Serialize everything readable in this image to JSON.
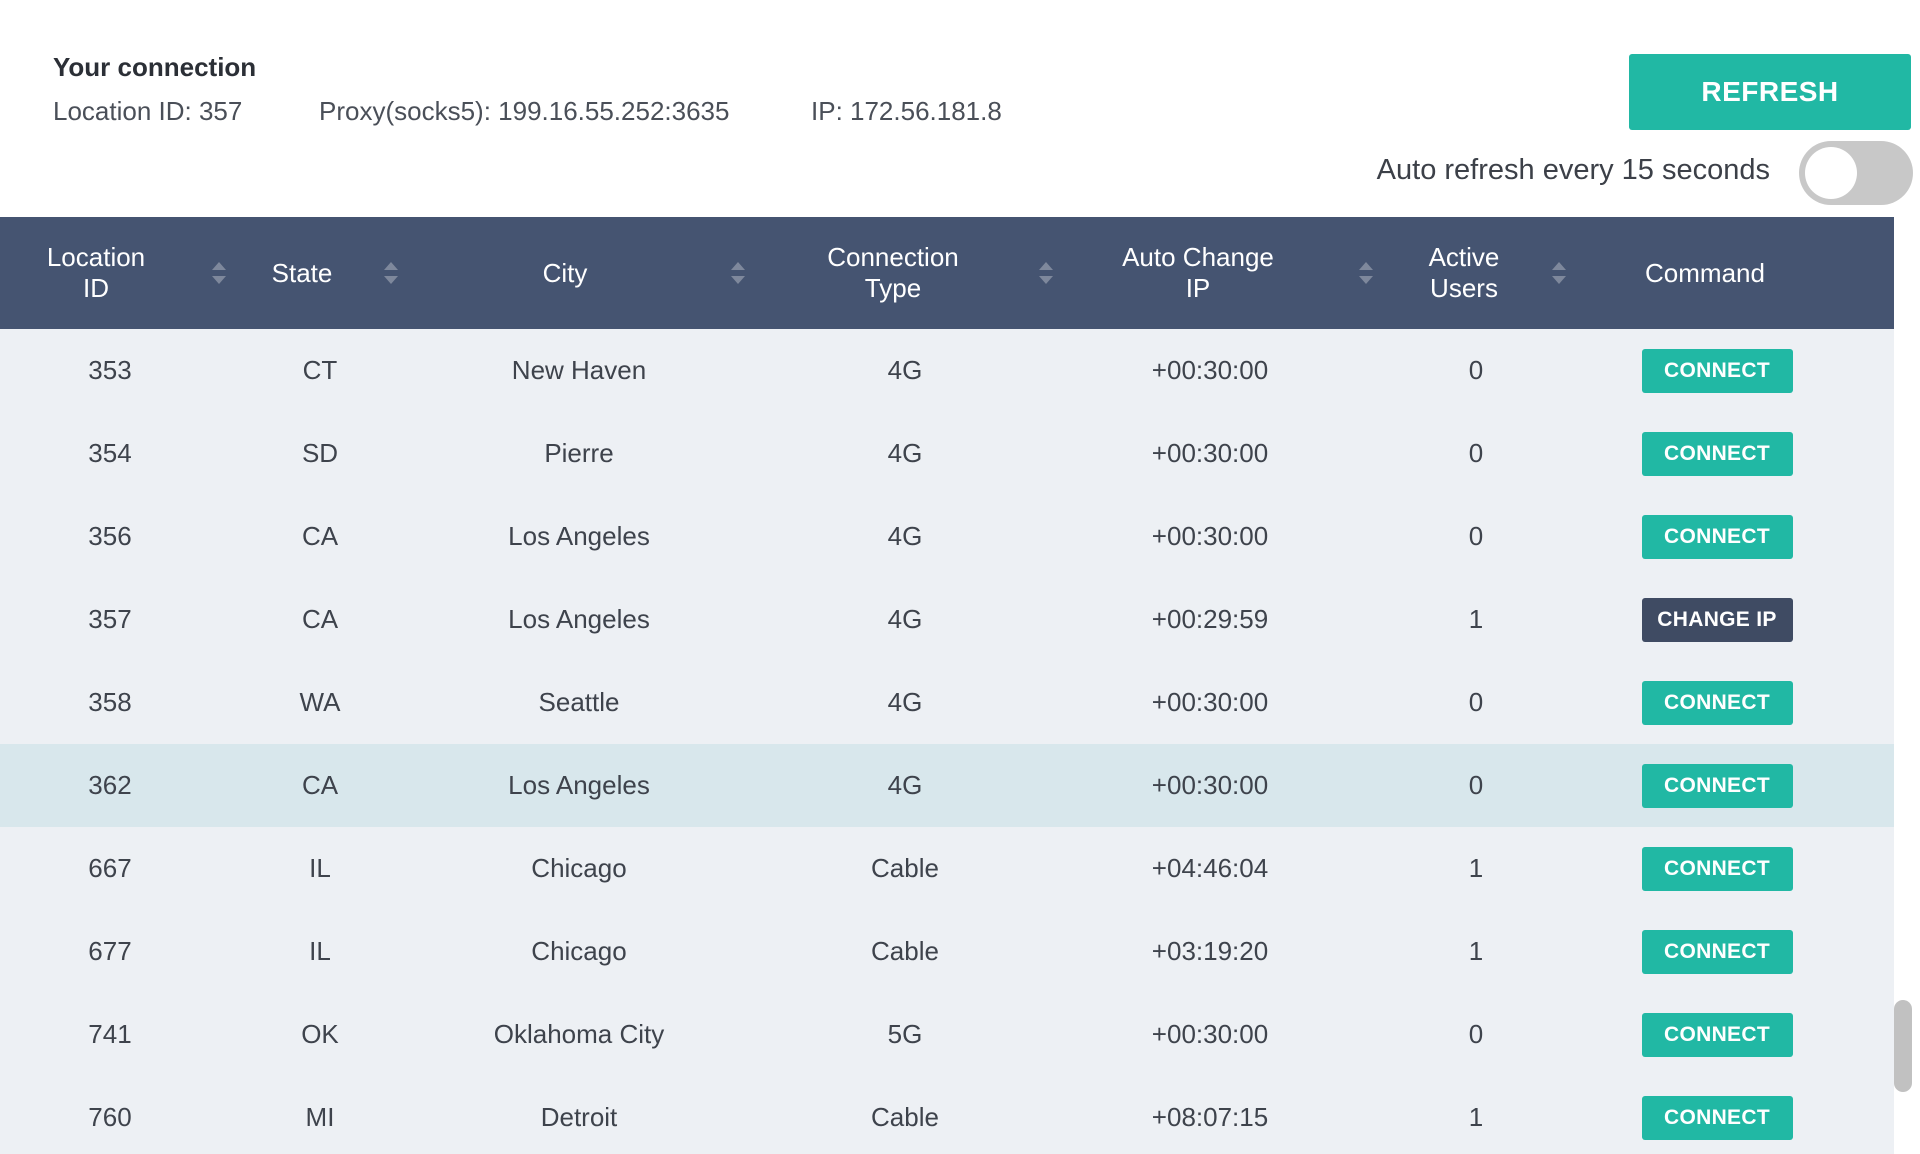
{
  "connection": {
    "title": "Your connection",
    "location_id": "Location ID: 357",
    "proxy": "Proxy(socks5): 199.16.55.252:3635",
    "ip": "IP: 172.56.181.8"
  },
  "controls": {
    "refresh_label": "REFRESH",
    "auto_refresh_label": "Auto refresh every 15 seconds",
    "auto_refresh_enabled": false
  },
  "colors": {
    "accent": "#21b8a4",
    "header_bg": "#455471",
    "change_ip_bg": "#3f4b63",
    "row_bg": "#edf0f4",
    "row_highlight_bg": "#d8e7ec"
  },
  "table": {
    "headers": {
      "location_id": "Location\nID",
      "state": "State",
      "city": "City",
      "connection_type": "Connection\nType",
      "auto_change_ip": "Auto Change\nIP",
      "active_users": "Active\nUsers",
      "command": "Command"
    },
    "rows": [
      {
        "id": "353",
        "state": "CT",
        "city": "New Haven",
        "type": "4G",
        "auto": "+00:30:00",
        "users": "0",
        "command": "CONNECT",
        "highlight": false
      },
      {
        "id": "354",
        "state": "SD",
        "city": "Pierre",
        "type": "4G",
        "auto": "+00:30:00",
        "users": "0",
        "command": "CONNECT",
        "highlight": false
      },
      {
        "id": "356",
        "state": "CA",
        "city": "Los Angeles",
        "type": "4G",
        "auto": "+00:30:00",
        "users": "0",
        "command": "CONNECT",
        "highlight": false
      },
      {
        "id": "357",
        "state": "CA",
        "city": "Los Angeles",
        "type": "4G",
        "auto": "+00:29:59",
        "users": "1",
        "command": "CHANGE IP",
        "highlight": false
      },
      {
        "id": "358",
        "state": "WA",
        "city": "Seattle",
        "type": "4G",
        "auto": "+00:30:00",
        "users": "0",
        "command": "CONNECT",
        "highlight": false
      },
      {
        "id": "362",
        "state": "CA",
        "city": "Los Angeles",
        "type": "4G",
        "auto": "+00:30:00",
        "users": "0",
        "command": "CONNECT",
        "highlight": true
      },
      {
        "id": "667",
        "state": "IL",
        "city": "Chicago",
        "type": "Cable",
        "auto": "+04:46:04",
        "users": "1",
        "command": "CONNECT",
        "highlight": false
      },
      {
        "id": "677",
        "state": "IL",
        "city": "Chicago",
        "type": "Cable",
        "auto": "+03:19:20",
        "users": "1",
        "command": "CONNECT",
        "highlight": false
      },
      {
        "id": "741",
        "state": "OK",
        "city": "Oklahoma City",
        "type": "5G",
        "auto": "+00:30:00",
        "users": "0",
        "command": "CONNECT",
        "highlight": false
      },
      {
        "id": "760",
        "state": "MI",
        "city": "Detroit",
        "type": "Cable",
        "auto": "+08:07:15",
        "users": "1",
        "command": "CONNECT",
        "highlight": false
      }
    ]
  }
}
